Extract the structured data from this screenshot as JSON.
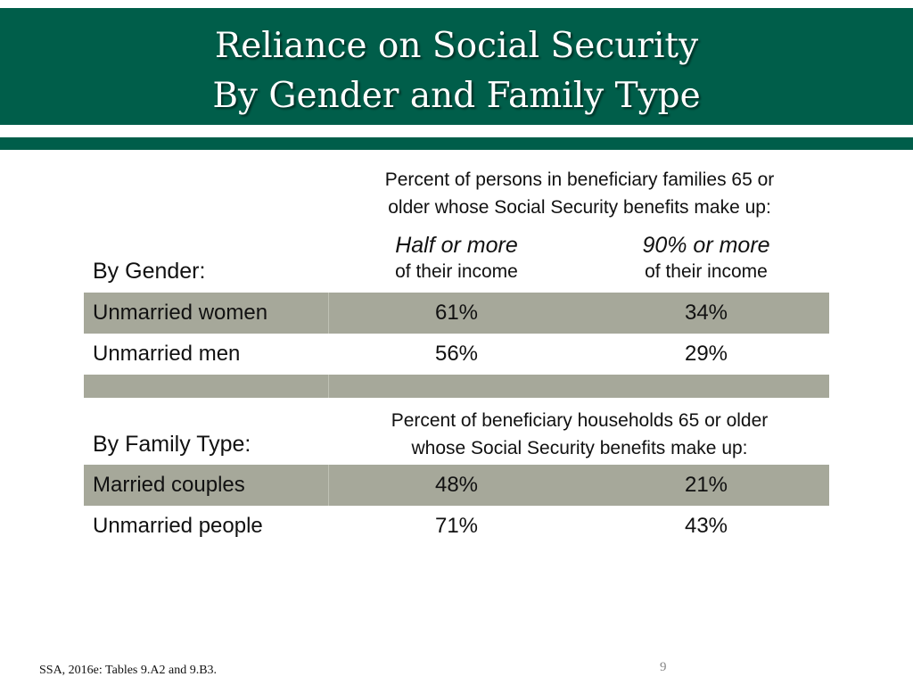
{
  "title": {
    "line1": "Reliance on Social Security",
    "line2": "By Gender and Family Type"
  },
  "gender_section": {
    "heading_line1": "Percent of persons in beneficiary families 65 or",
    "heading_line2": "older whose Social Security benefits make up:",
    "label": "By Gender:",
    "columns": [
      {
        "main": "Half or more",
        "sub": "of their income"
      },
      {
        "main": "90% or more",
        "sub": "of their income"
      }
    ],
    "rows": [
      {
        "label": "Unmarried women",
        "half_or_more": "61%",
        "ninety_or_more": "34%"
      },
      {
        "label": "Unmarried men",
        "half_or_more": "56%",
        "ninety_or_more": "29%"
      }
    ]
  },
  "family_section": {
    "heading_line1": "Percent of beneficiary households 65 or older",
    "heading_line2": "whose Social Security benefits make up:",
    "label": "By Family Type:",
    "rows": [
      {
        "label": "Married couples",
        "half_or_more": "48%",
        "ninety_or_more": "21%"
      },
      {
        "label": "Unmarried people",
        "half_or_more": "71%",
        "ninety_or_more": "43%"
      }
    ]
  },
  "footer": {
    "source": "SSA, 2016e: Tables 9.A2 and 9.B3.",
    "page_number": "9"
  },
  "colors": {
    "brand_green": "#005e4a",
    "row_shade": "#a6a89a"
  }
}
